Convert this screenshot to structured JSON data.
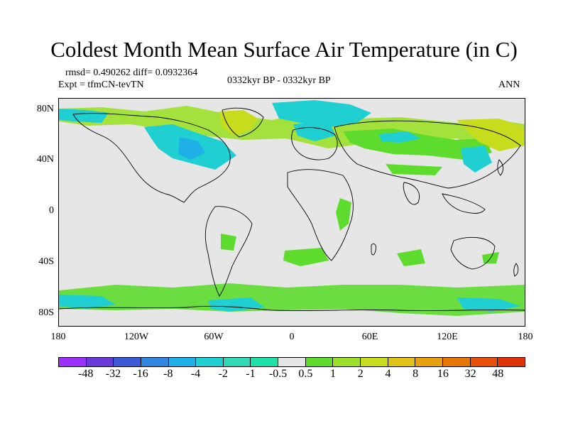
{
  "title": "Coldest Month Mean Surface Air Temperature (in C)",
  "stats": "rmsd= 0.490262 diff= 0.0932364",
  "expt": "Expt = tfmCN-tevTN",
  "period": "0332kyr BP - 0332kyr BP",
  "season": "ANN",
  "y_ticks": [
    "80N",
    "40N",
    "0",
    "40S",
    "80S"
  ],
  "x_ticks": [
    "180",
    "120W",
    "60W",
    "0",
    "60E",
    "120E",
    "180"
  ],
  "colorbar": {
    "colors": [
      "#9b30ff",
      "#6a3ad8",
      "#3c5ad8",
      "#2f86e0",
      "#1fb0e8",
      "#1fcfd2",
      "#33d9b6",
      "#1ee0a8",
      "#e6e6e6",
      "#5edc2e",
      "#9ce02a",
      "#c6dc1c",
      "#e0c218",
      "#e6a010",
      "#e6780a",
      "#e65008",
      "#e03008"
    ],
    "labels": [
      "-48",
      "-32",
      "-16",
      "-8",
      "-4",
      "-2",
      "-1",
      "-0.5",
      "0.5",
      "1",
      "2",
      "4",
      "8",
      "16",
      "32",
      "48"
    ]
  }
}
